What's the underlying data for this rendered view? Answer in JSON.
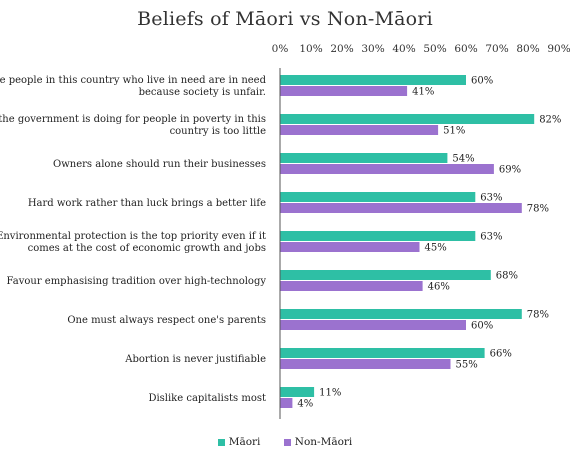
{
  "chart_data": {
    "type": "bar",
    "orientation": "horizontal",
    "title": "Beliefs of Māori  vs Non-Māori",
    "categories": [
      "The people in this country who live in need are in need because society is unfair.",
      "What the government is doing for people in poverty in this country is too little",
      "Owners alone should run their businesses",
      "Hard work rather than luck brings a better life",
      "Environmental protection is the top priority even if it comes at the cost of economic growth and jobs",
      "Favour emphasising tradition over high-technology",
      "One must always respect one's parents",
      "Abortion is never justifiable",
      "Dislike capitalists most"
    ],
    "category_lines": [
      [
        "The people in this country who live in need are in need",
        "because society is unfair."
      ],
      [
        "What the government is doing for people in poverty in this",
        "country is too little"
      ],
      [
        "Owners alone should run their businesses"
      ],
      [
        "Hard work rather than luck brings a better life"
      ],
      [
        "Environmental protection is the top priority even if it",
        "comes at the cost of economic growth and jobs"
      ],
      [
        "Favour emphasising tradition over high-technology"
      ],
      [
        "One must always respect one's parents"
      ],
      [
        "Abortion is never justifiable"
      ],
      [
        "Dislike capitalists most"
      ]
    ],
    "series": [
      {
        "name": "Māori",
        "color": "#2ebfa5",
        "values": [
          60,
          82,
          54,
          63,
          63,
          68,
          78,
          66,
          11
        ]
      },
      {
        "name": "Non-Māori",
        "color": "#9b72cf",
        "values": [
          41,
          51,
          69,
          78,
          45,
          46,
          60,
          55,
          4
        ]
      }
    ],
    "value_suffix": "%",
    "xlim": [
      0,
      90
    ],
    "xticks": [
      "0%",
      "10%",
      "20%",
      "30%",
      "40%",
      "50%",
      "60%",
      "70%",
      "80%",
      "90%"
    ],
    "xtick_values": [
      0,
      10,
      20,
      30,
      40,
      50,
      60,
      70,
      80,
      90
    ],
    "xaxis_position": "top",
    "grid": false,
    "legend_position": "bottom"
  }
}
